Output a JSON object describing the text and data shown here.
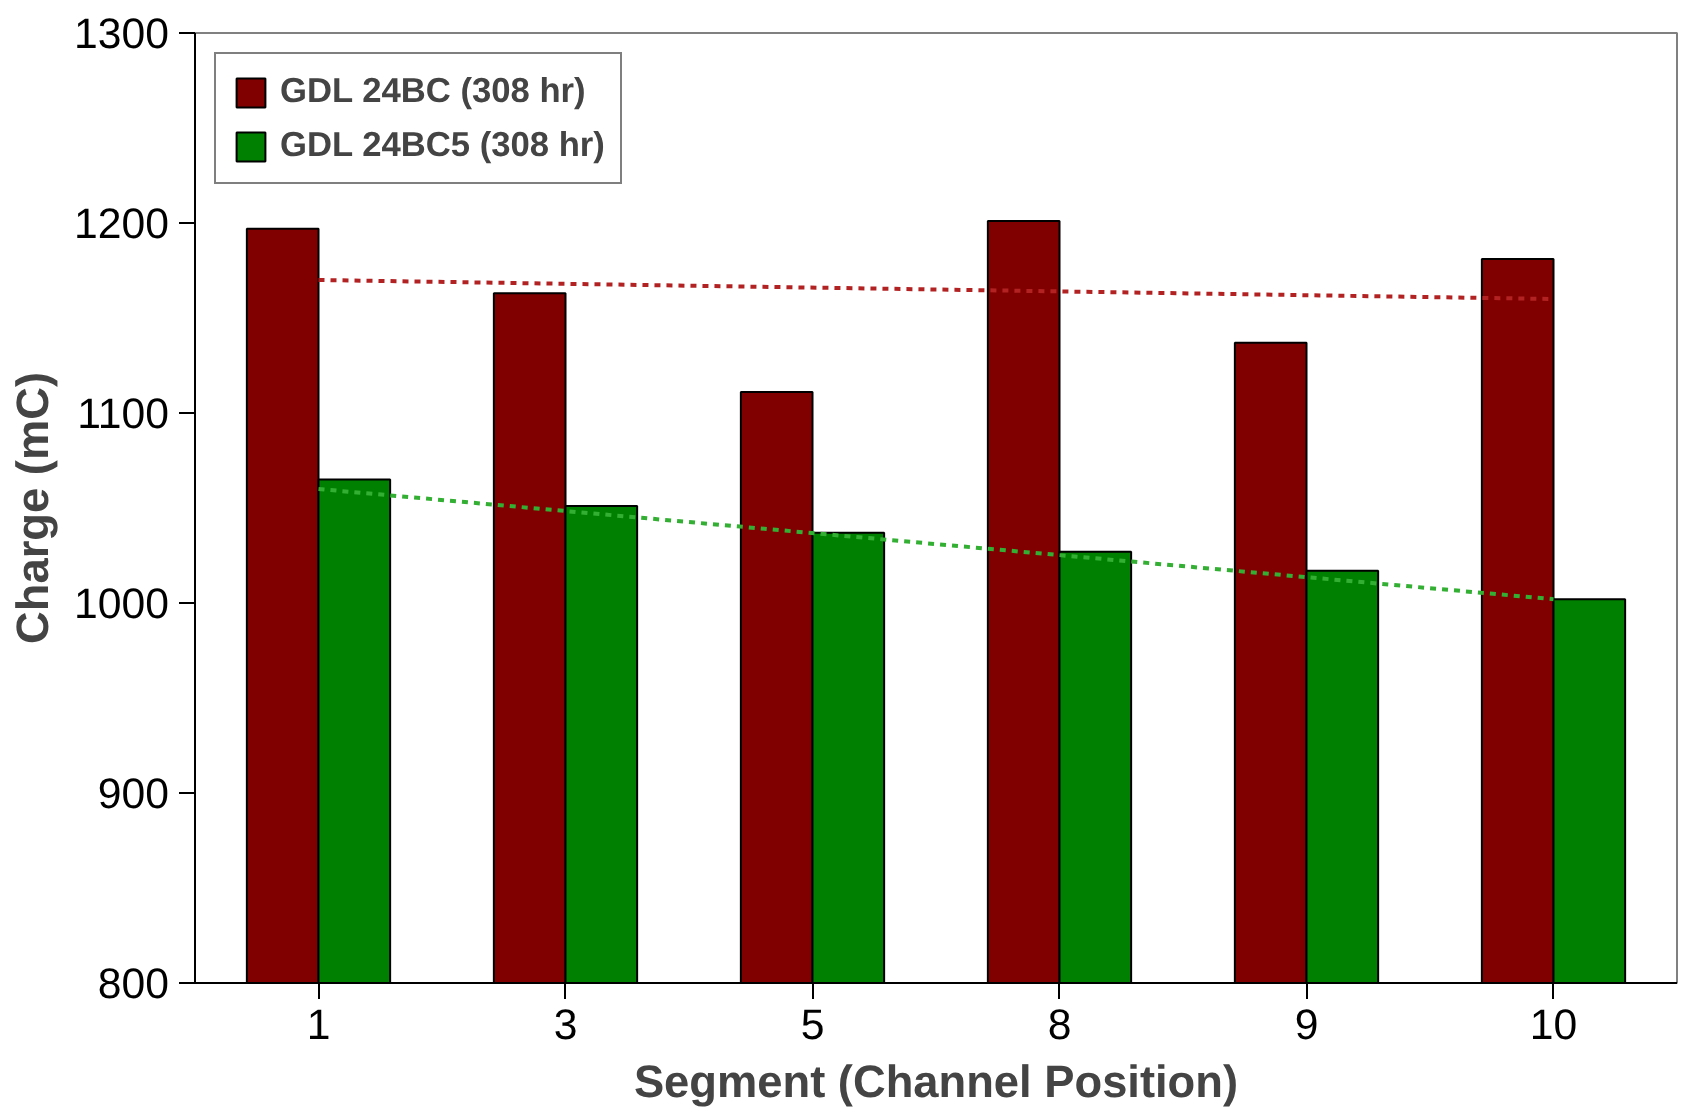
{
  "chart_data": {
    "type": "bar",
    "xlabel": "Segment (Channel Position)",
    "ylabel": "Charge (mC)",
    "categories": [
      "1",
      "3",
      "5",
      "8",
      "9",
      "10"
    ],
    "series": [
      {
        "name": "GDL 24BC (308 hr)",
        "color": "#800000",
        "values": [
          1197,
          1163,
          1111,
          1201,
          1137,
          1181
        ]
      },
      {
        "name": "GDL 24BC5 (308 hr)",
        "color": "#008000",
        "values": [
          1065,
          1051,
          1037,
          1027,
          1017,
          1002
        ]
      },
      {
        "type": "line",
        "color": "#b22222",
        "x": [
          "1",
          "10"
        ],
        "values": [
          1170,
          1160
        ],
        "line_style": "dotted"
      },
      {
        "type": "line",
        "color": "#33b033",
        "x": [
          "1",
          "10"
        ],
        "values": [
          1060,
          1002
        ],
        "line_style": "dotted"
      }
    ],
    "ylim": [
      800,
      1300
    ],
    "yticks": [
      800,
      900,
      1000,
      1100,
      1200,
      1300
    ],
    "grid": false,
    "legend": "top left"
  }
}
